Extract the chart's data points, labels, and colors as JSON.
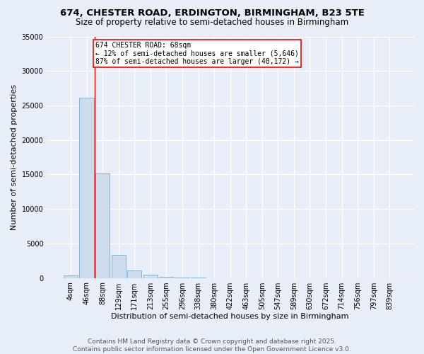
{
  "title_line1": "674, CHESTER ROAD, ERDINGTON, BIRMINGHAM, B23 5TE",
  "title_line2": "Size of property relative to semi-detached houses in Birmingham",
  "xlabel": "Distribution of semi-detached houses by size in Birmingham",
  "ylabel": "Number of semi-detached properties",
  "categories": [
    "4sqm",
    "46sqm",
    "88sqm",
    "129sqm",
    "171sqm",
    "213sqm",
    "255sqm",
    "296sqm",
    "338sqm",
    "380sqm",
    "422sqm",
    "463sqm",
    "505sqm",
    "547sqm",
    "589sqm",
    "630sqm",
    "672sqm",
    "714sqm",
    "756sqm",
    "797sqm",
    "839sqm"
  ],
  "values": [
    350,
    26100,
    15100,
    3300,
    1050,
    450,
    150,
    50,
    10,
    5,
    3,
    2,
    1,
    1,
    0,
    0,
    0,
    0,
    0,
    0,
    0
  ],
  "bar_color": "#ccdcec",
  "bar_edge_color": "#7aaaca",
  "vline_x": 1.5,
  "vline_color": "red",
  "annotation_title": "674 CHESTER ROAD: 68sqm",
  "annotation_line1": "← 12% of semi-detached houses are smaller (5,646)",
  "annotation_line2": "87% of semi-detached houses are larger (40,172) →",
  "ylim": [
    0,
    35000
  ],
  "yticks": [
    0,
    5000,
    10000,
    15000,
    20000,
    25000,
    30000,
    35000
  ],
  "background_color": "#e8eef8",
  "plot_bg_color": "#e8eef8",
  "grid_color": "#ffffff",
  "footer_line1": "Contains HM Land Registry data © Crown copyright and database right 2025.",
  "footer_line2": "Contains public sector information licensed under the Open Government Licence v3.0.",
  "title_fontsize": 9.5,
  "subtitle_fontsize": 8.5,
  "axis_label_fontsize": 8,
  "tick_fontsize": 7,
  "annotation_fontsize": 7,
  "footer_fontsize": 6.5
}
